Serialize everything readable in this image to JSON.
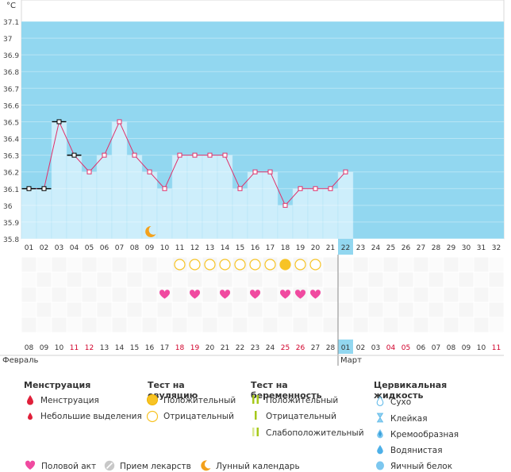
{
  "unit_label": "°C",
  "chart_data": {
    "type": "line",
    "ylim": [
      35.8,
      37.1
    ],
    "yticks": [
      "35.8",
      "35.9",
      "36",
      "36.1",
      "36.2",
      "36.3",
      "36.4",
      "36.5",
      "36.6",
      "36.7",
      "36.8",
      "36.9",
      "37",
      "37.1"
    ],
    "cycle_days": [
      "01",
      "02",
      "03",
      "04",
      "05",
      "06",
      "07",
      "08",
      "09",
      "10",
      "11",
      "12",
      "13",
      "14",
      "15",
      "16",
      "17",
      "18",
      "19",
      "20",
      "21",
      "22",
      "23",
      "24",
      "25",
      "26",
      "27",
      "28",
      "29",
      "30",
      "31",
      "32"
    ],
    "current_day": "22",
    "temperatures": [
      36.1,
      36.1,
      36.5,
      36.3,
      36.2,
      36.3,
      36.5,
      36.3,
      36.2,
      36.1,
      36.3,
      36.3,
      36.3,
      36.3,
      36.1,
      36.2,
      36.2,
      36.0,
      36.1,
      36.1,
      36.1,
      36.2
    ],
    "unconfirmed_days": [
      1,
      2,
      3,
      4
    ],
    "lunar_marker_day": 9,
    "ovulation_tests": [
      {
        "day": 11,
        "result": "negative"
      },
      {
        "day": 12,
        "result": "negative"
      },
      {
        "day": 13,
        "result": "negative"
      },
      {
        "day": 14,
        "result": "negative"
      },
      {
        "day": 15,
        "result": "negative"
      },
      {
        "day": 16,
        "result": "negative"
      },
      {
        "day": 17,
        "result": "negative"
      },
      {
        "day": 18,
        "result": "positive"
      },
      {
        "day": 19,
        "result": "negative"
      },
      {
        "day": 20,
        "result": "negative"
      }
    ],
    "intercourse_days": [
      10,
      12,
      14,
      16,
      18,
      19,
      20
    ],
    "calendar_dates": [
      {
        "d": "08",
        "red": false
      },
      {
        "d": "09",
        "red": false
      },
      {
        "d": "10",
        "red": false
      },
      {
        "d": "11",
        "red": true
      },
      {
        "d": "12",
        "red": true
      },
      {
        "d": "13",
        "red": false
      },
      {
        "d": "14",
        "red": false
      },
      {
        "d": "15",
        "red": false
      },
      {
        "d": "16",
        "red": false
      },
      {
        "d": "17",
        "red": false
      },
      {
        "d": "18",
        "red": true
      },
      {
        "d": "19",
        "red": true
      },
      {
        "d": "20",
        "red": false
      },
      {
        "d": "21",
        "red": false
      },
      {
        "d": "22",
        "red": false
      },
      {
        "d": "23",
        "red": false
      },
      {
        "d": "24",
        "red": false
      },
      {
        "d": "25",
        "red": true
      },
      {
        "d": "26",
        "red": true
      },
      {
        "d": "27",
        "red": false
      },
      {
        "d": "28",
        "red": false
      },
      {
        "d": "01",
        "red": false
      },
      {
        "d": "02",
        "red": false
      },
      {
        "d": "03",
        "red": false
      },
      {
        "d": "04",
        "red": true
      },
      {
        "d": "05",
        "red": true
      },
      {
        "d": "06",
        "red": false
      },
      {
        "d": "07",
        "red": false
      },
      {
        "d": "08",
        "red": false
      },
      {
        "d": "09",
        "red": false
      },
      {
        "d": "10",
        "red": false
      },
      {
        "d": "11",
        "red": true
      }
    ],
    "months": [
      {
        "label": "Февраль",
        "start_index": 0
      },
      {
        "label": "Март",
        "start_index": 21
      }
    ],
    "colors": {
      "sky": "#92d7f0",
      "bar": "#cdeefb",
      "bar_edge": "#b0e2f5",
      "line": "#e0306a",
      "accent_day": "#92d7f0",
      "heart": "#f04aa0",
      "ovulation": "#f7c325",
      "red_date": "#d0002a"
    }
  },
  "legend": {
    "menstruation": {
      "title": "Менструация",
      "items": [
        "Менструация",
        "Небольшие выделения"
      ]
    },
    "ovulation_test": {
      "title": "Тест на овуляцию",
      "items": [
        "Положительный",
        "Отрицательный"
      ]
    },
    "pregnancy_test": {
      "title": "Тест на беременность",
      "items": [
        "Положительный",
        "Отрицательный",
        "Слабоположительный"
      ]
    },
    "cervical_fluid": {
      "title": "Цервикальная жидкость",
      "items": [
        "Сухо",
        "Клейкая",
        "Кремообразная",
        "Водянистая",
        "Яичный белок"
      ]
    },
    "bottom": [
      "Половой акт",
      "Прием лекарств",
      "Лунный календарь"
    ]
  }
}
